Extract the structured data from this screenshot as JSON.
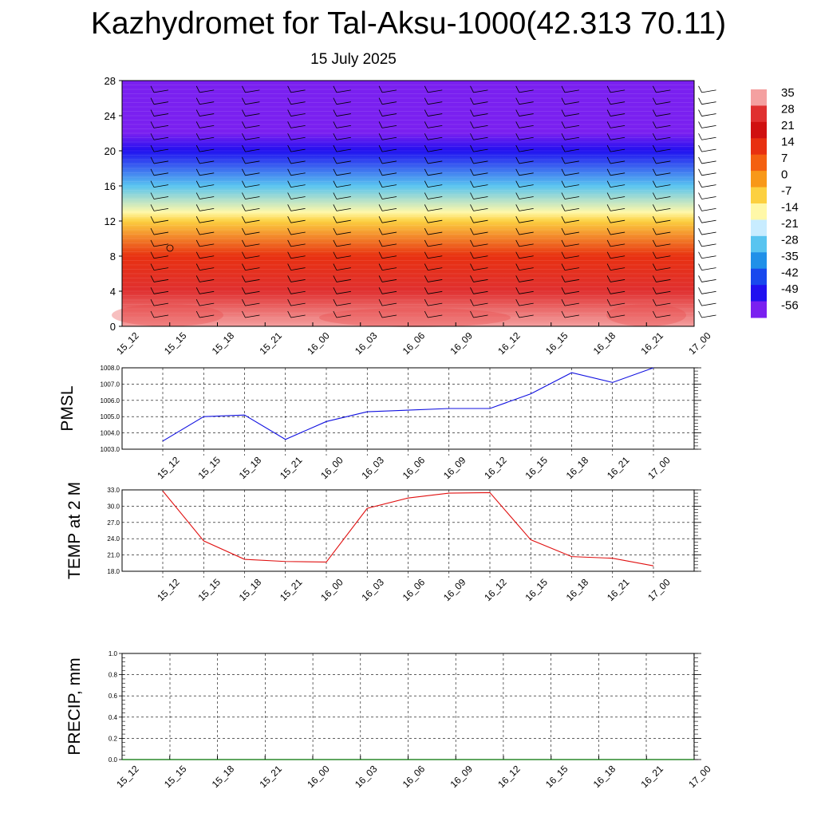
{
  "header": {
    "title": "Kazhydromet for Tal-Aksu-1000(42.313 70.11)",
    "subtitle": "15 July 2025"
  },
  "chart_data": [
    {
      "type": "heatmap",
      "title": "",
      "x_tick_labels": [
        "15_12",
        "15_15",
        "15_18",
        "15_21",
        "16_00",
        "16_03",
        "16_06",
        "16_09",
        "16_12",
        "16_15",
        "16_18",
        "16_21",
        "17_00"
      ],
      "y_tick_labels": [
        "0",
        "4",
        "8",
        "12",
        "16",
        "20",
        "24",
        "28"
      ],
      "ylim": [
        0,
        28
      ],
      "colorbar_labels": [
        "35",
        "28",
        "21",
        "14",
        "7",
        "0",
        "-7",
        "-14",
        "-21",
        "-28",
        "-35",
        "-42",
        "-49",
        "-56"
      ],
      "colorbar_colors": [
        "#f4a0a0",
        "#e03030",
        "#d01010",
        "#e83010",
        "#f46010",
        "#f89818",
        "#fcd040",
        "#fff8a8",
        "#c8ecff",
        "#58c4f0",
        "#2090e8",
        "#1848ee",
        "#2010f0",
        "#7a20f0"
      ],
      "field_description_levels": [
        {
          "height": 0,
          "value": 33
        },
        {
          "height": 4,
          "value": 27
        },
        {
          "height": 8,
          "value": 17
        },
        {
          "height": 12,
          "value": -8
        },
        {
          "height": 13,
          "value": -14
        },
        {
          "height": 16,
          "value": -30
        },
        {
          "height": 20,
          "value": -49
        },
        {
          "height": 22,
          "value": -56
        },
        {
          "height": 28,
          "value": -60
        }
      ]
    },
    {
      "type": "line",
      "ylabel": "PMSL",
      "ylim": [
        1003.0,
        1008.0
      ],
      "y_tick_labels": [
        "1003.0",
        "1004.0",
        "1005.0",
        "1006.0",
        "1007.0",
        "1008.0"
      ],
      "categories": [
        "15_12",
        "15_15",
        "15_18",
        "15_21",
        "16_00",
        "16_03",
        "16_06",
        "16_09",
        "16_12",
        "16_15",
        "16_18",
        "16_21",
        "17_00"
      ],
      "series": [
        {
          "values": [
            1003.5,
            1005.0,
            1005.1,
            1003.6,
            1004.7,
            1005.3,
            1005.4,
            1005.5,
            1005.5,
            1006.4,
            1007.7,
            1007.1,
            1008.0
          ],
          "color": "#1010e0"
        }
      ]
    },
    {
      "type": "line",
      "ylabel": "TEMP at 2 M",
      "ylim": [
        18.0,
        33.0
      ],
      "y_tick_labels": [
        "18.0",
        "21.0",
        "24.0",
        "27.0",
        "30.0",
        "33.0"
      ],
      "categories": [
        "15_12",
        "15_15",
        "15_18",
        "15_21",
        "16_00",
        "16_03",
        "16_06",
        "16_09",
        "16_12",
        "16_15",
        "16_18",
        "16_21",
        "17_00"
      ],
      "series": [
        {
          "values": [
            32.8,
            23.6,
            20.2,
            19.8,
            19.7,
            29.6,
            31.5,
            32.4,
            32.5,
            23.8,
            20.7,
            20.4,
            19.0
          ],
          "color": "#e01010"
        }
      ]
    },
    {
      "type": "line",
      "ylabel": "PRECIP, mm",
      "ylim": [
        0.0,
        1.0
      ],
      "y_tick_labels": [
        "0.0",
        "0.2",
        "0.4",
        "0.6",
        "0.8",
        "1.0"
      ],
      "categories": [
        "15_12",
        "15_15",
        "15_18",
        "15_21",
        "16_00",
        "16_03",
        "16_06",
        "16_09",
        "16_12",
        "16_15",
        "16_18",
        "16_21",
        "17_00"
      ],
      "series": [
        {
          "values": [
            0,
            0,
            0,
            0,
            0,
            0,
            0,
            0,
            0,
            0,
            0,
            0,
            0
          ],
          "color": "#007000"
        }
      ]
    }
  ]
}
